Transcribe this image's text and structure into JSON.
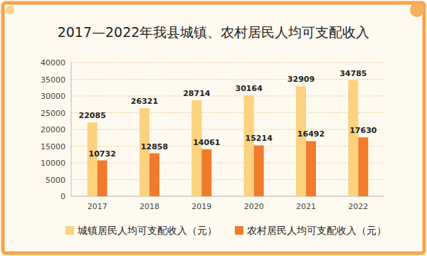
{
  "chart_data": {
    "type": "bar",
    "title": "2017—2022年我县城镇、农村居民人均可支配收入",
    "categories": [
      "2017",
      "2018",
      "2019",
      "2020",
      "2021",
      "2022"
    ],
    "series": [
      {
        "name": "城镇居民人均可支配收入（元）",
        "color": "#fcd27e",
        "values": [
          22085,
          26321,
          28714,
          30164,
          32909,
          34785
        ]
      },
      {
        "name": "农村居民人均可支配收入（元）",
        "color": "#f07b2c",
        "values": [
          10732,
          12858,
          14061,
          15214,
          16492,
          17630
        ]
      }
    ],
    "ylim": [
      0,
      40000
    ],
    "yticks": [
      0,
      5000,
      10000,
      15000,
      20000,
      25000,
      30000,
      35000,
      40000
    ],
    "grid": true,
    "data_labels": true,
    "legend": "bottom"
  }
}
